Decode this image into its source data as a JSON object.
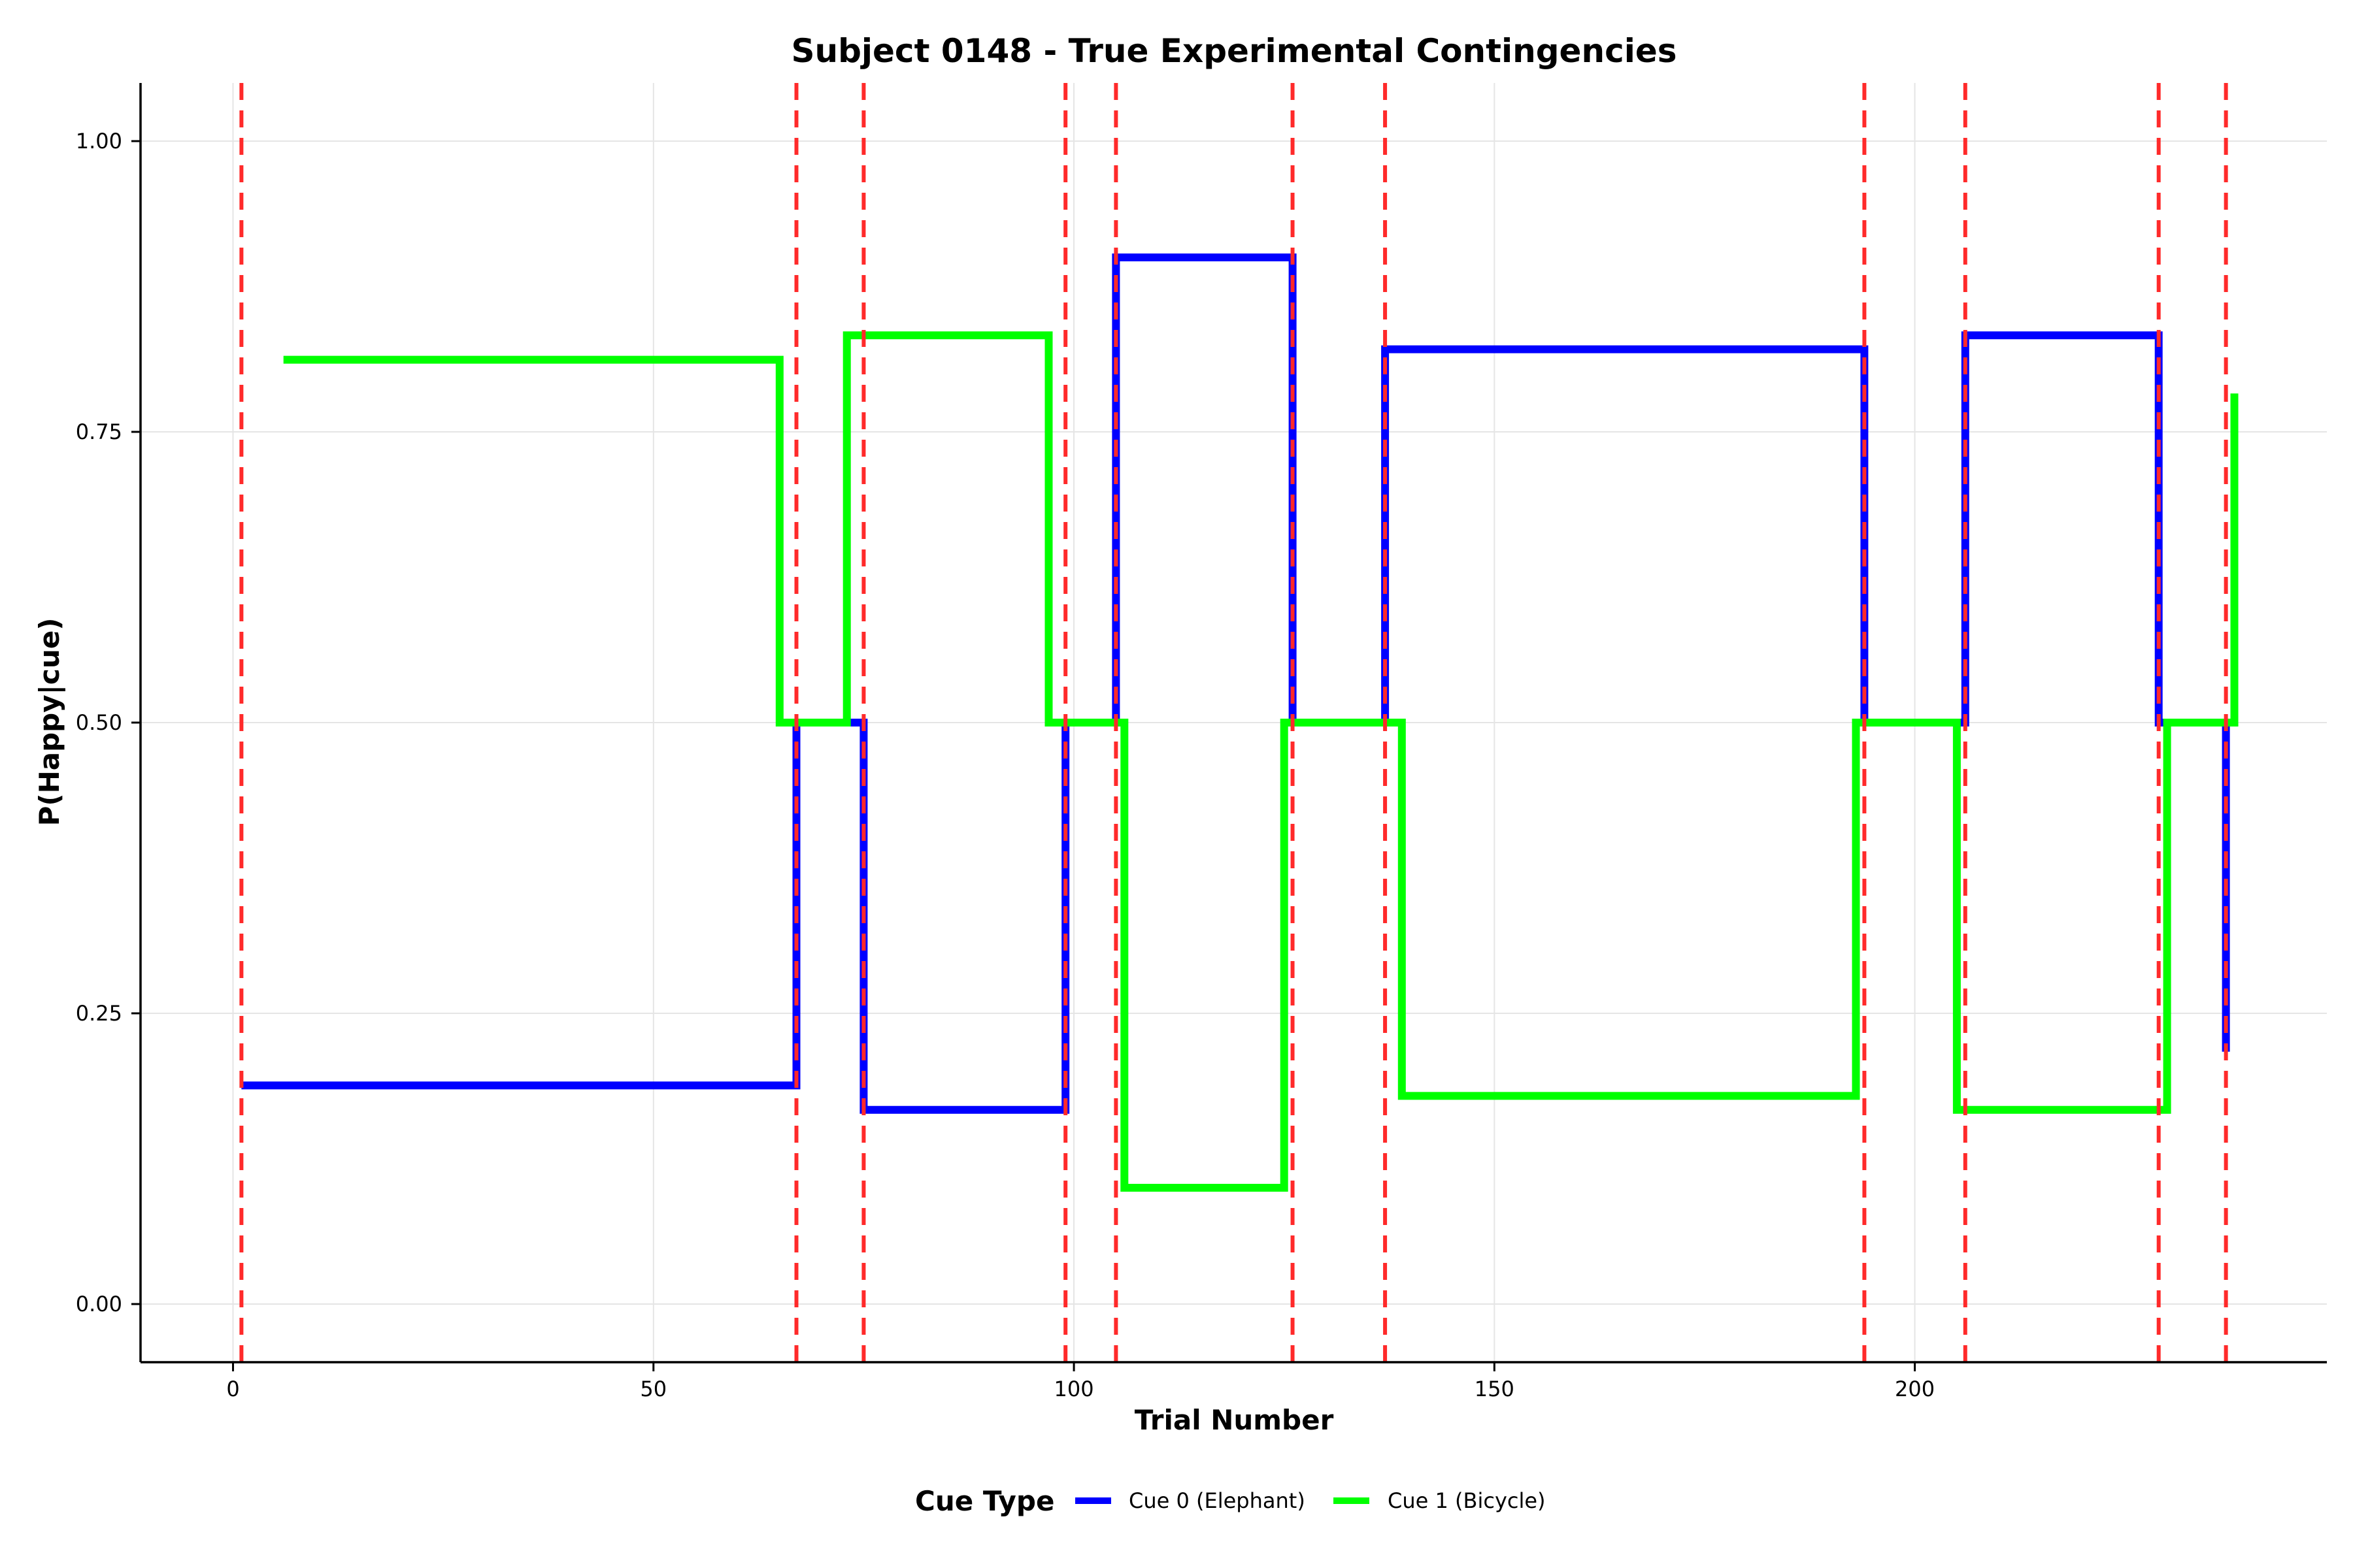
{
  "chart_data": {
    "type": "line",
    "step": true,
    "title": "Subject 0148 - True Experimental Contingencies",
    "xlabel": "Trial Number",
    "ylabel": "P(Happy|cue)",
    "xlim": [
      -11,
      249
    ],
    "ylim": [
      -0.05,
      1.05
    ],
    "xticks": [
      0,
      50,
      100,
      150,
      200
    ],
    "xtick_labels": [
      "0",
      "50",
      "100",
      "150",
      "200"
    ],
    "yticks": [
      0.0,
      0.25,
      0.5,
      0.75,
      1.0
    ],
    "ytick_labels": [
      "0.00",
      "0.25",
      "0.50",
      "0.75",
      "1.00"
    ],
    "grid": true,
    "legend": {
      "title": "Cue Type",
      "placement": "bottom-center"
    },
    "series": [
      {
        "name": "Cue 0 (Elephant)",
        "color": "#0000ff",
        "points": [
          [
            1,
            0.188
          ],
          [
            67,
            0.188
          ],
          [
            67,
            0.5
          ],
          [
            75,
            0.5
          ],
          [
            75,
            0.167
          ],
          [
            99,
            0.167
          ],
          [
            99,
            0.5
          ],
          [
            105,
            0.5
          ],
          [
            105,
            0.9
          ],
          [
            126,
            0.9
          ],
          [
            126,
            0.5
          ],
          [
            137,
            0.5
          ],
          [
            137,
            0.821
          ],
          [
            194,
            0.821
          ],
          [
            194,
            0.5
          ],
          [
            206,
            0.5
          ],
          [
            206,
            0.833
          ],
          [
            229,
            0.833
          ],
          [
            229,
            0.5
          ],
          [
            237,
            0.5
          ],
          [
            237,
            0.217
          ]
        ]
      },
      {
        "name": "Cue 1 (Bicycle)",
        "color": "#00ff00",
        "points": [
          [
            6,
            0.812
          ],
          [
            65,
            0.812
          ],
          [
            65,
            0.5
          ],
          [
            73,
            0.5
          ],
          [
            73,
            0.833
          ],
          [
            97,
            0.833
          ],
          [
            97,
            0.5
          ],
          [
            106,
            0.5
          ],
          [
            106,
            0.1
          ],
          [
            125,
            0.1
          ],
          [
            125,
            0.5
          ],
          [
            139,
            0.5
          ],
          [
            139,
            0.179
          ],
          [
            193,
            0.179
          ],
          [
            193,
            0.5
          ],
          [
            205,
            0.5
          ],
          [
            205,
            0.167
          ],
          [
            230,
            0.167
          ],
          [
            230,
            0.5
          ],
          [
            238,
            0.5
          ],
          [
            238,
            0.783
          ]
        ]
      }
    ],
    "change_points": {
      "color": "#ff2a2a",
      "trials": [
        1,
        67,
        75,
        99,
        105,
        126,
        137,
        194,
        206,
        229,
        237
      ]
    }
  }
}
